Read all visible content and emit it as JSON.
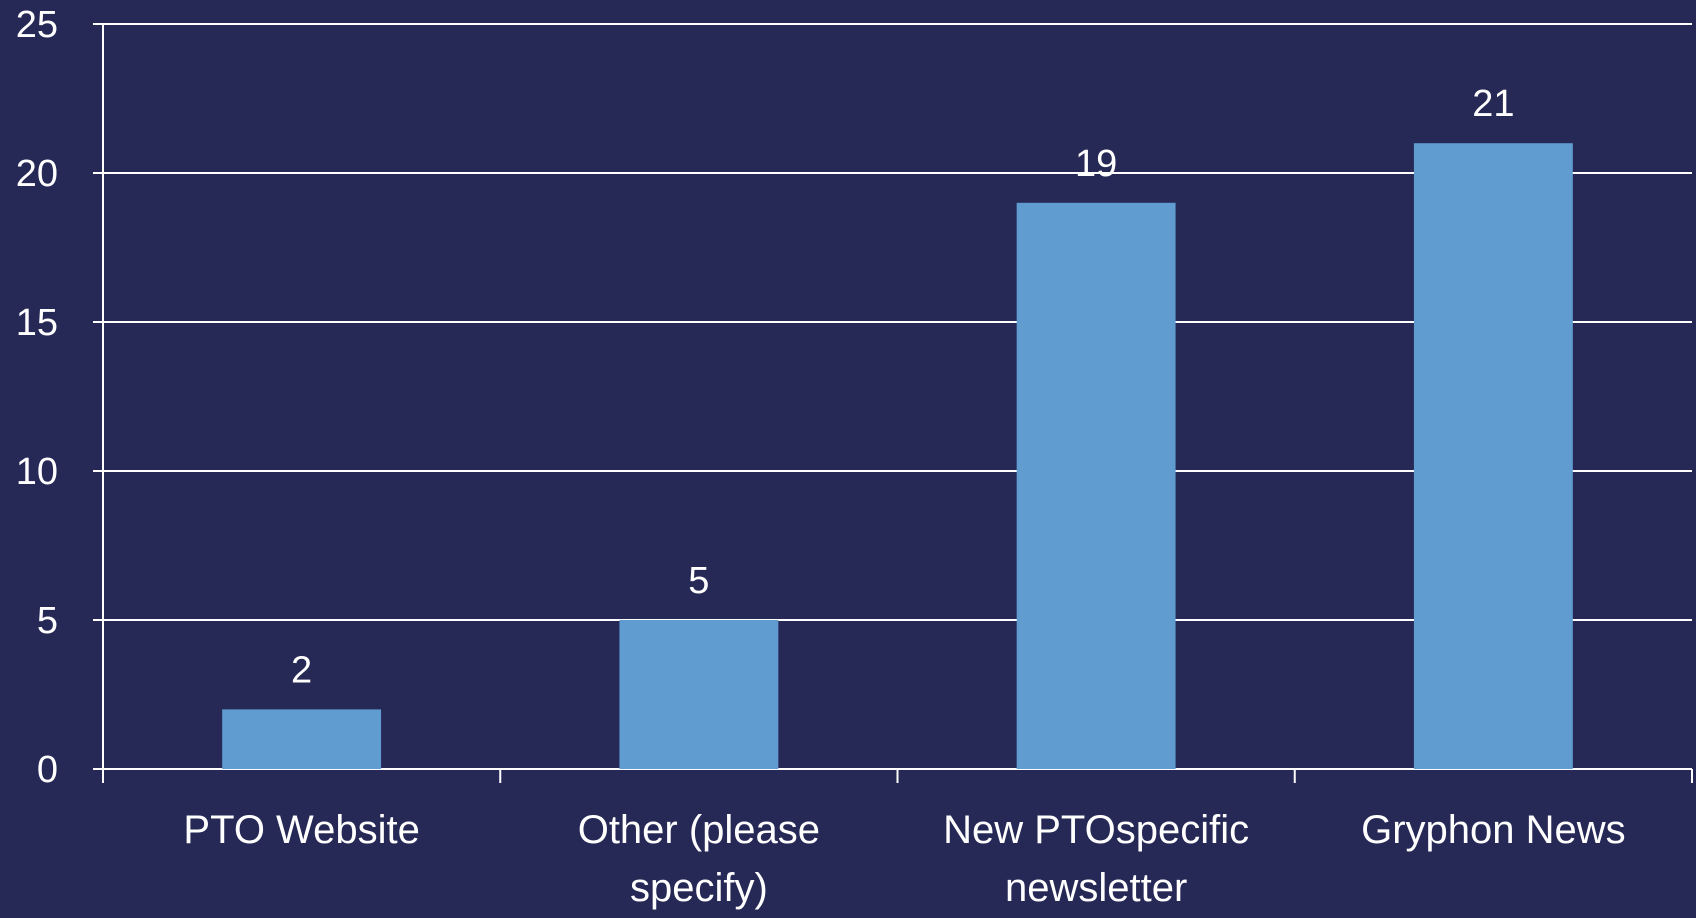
{
  "chart_data": {
    "type": "bar",
    "categories": [
      [
        "PTO Website"
      ],
      [
        "Other (please",
        "specify)"
      ],
      [
        "New PTOspecific",
        "newsletter"
      ],
      [
        "Gryphon News"
      ]
    ],
    "values": [
      2,
      5,
      19,
      21
    ],
    "data_labels": [
      "2",
      "5",
      "19",
      "21"
    ],
    "yticks": [
      0,
      5,
      10,
      15,
      20,
      25
    ],
    "ylim": [
      0,
      25
    ],
    "grid": true,
    "legend": "none",
    "colors": {
      "background": "#262856",
      "bar": "#609CD0",
      "grid": "#ffffff",
      "text": "#ffffff"
    }
  }
}
